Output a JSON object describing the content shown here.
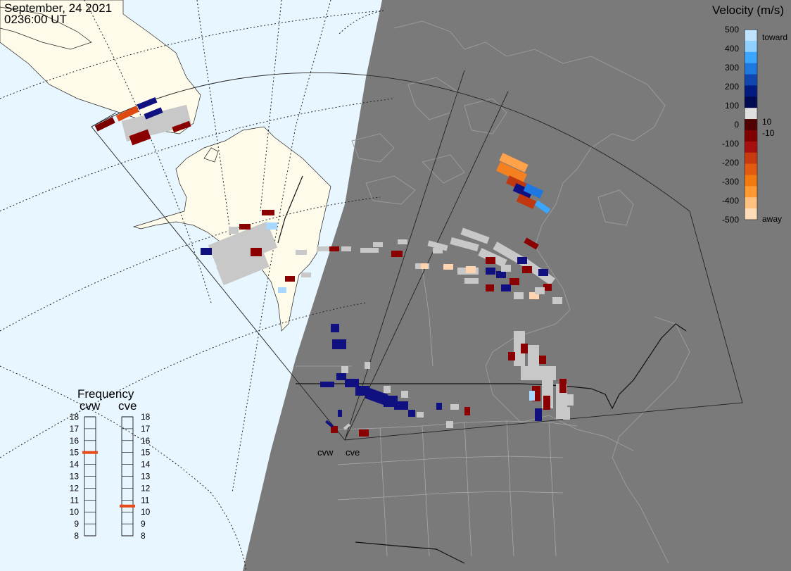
{
  "header": {
    "date": "September, 24 2021",
    "time": "0236:00 UT"
  },
  "velocity_scale": {
    "title": "Velocity (m/s)",
    "ticks": [
      "500",
      "400",
      "300",
      "200",
      "100",
      "0",
      "-100",
      "-200",
      "-300",
      "-400",
      "-500"
    ],
    "inner_labels": [
      "10",
      "-10"
    ],
    "toward_label": "toward",
    "away_label": "away",
    "colors": [
      "#bfe3ff",
      "#8fd0ff",
      "#3aa6ff",
      "#1e78e0",
      "#1046b0",
      "#001a80",
      "#000a50",
      "#e0e0e0",
      "#500000",
      "#800000",
      "#a81010",
      "#c83a10",
      "#e45a10",
      "#f47a10",
      "#ff9a30",
      "#ffc080",
      "#ffdcb8"
    ]
  },
  "frequency": {
    "title": "Frequency",
    "radars": [
      {
        "name": "cvw",
        "value": 15
      },
      {
        "name": "cve",
        "value": 10.5
      }
    ],
    "ticks": [
      "18",
      "17",
      "16",
      "15",
      "14",
      "13",
      "12",
      "11",
      "10",
      "9",
      "8"
    ]
  },
  "sites": {
    "cvw": "cvw",
    "cve": "cve"
  },
  "colors": {
    "ocean": "#e8f6ff",
    "land": "#fffbea",
    "night": "#7a7a7a",
    "ground_scatter": "#c8c8c8",
    "freq_marker": "#e84a1a"
  }
}
